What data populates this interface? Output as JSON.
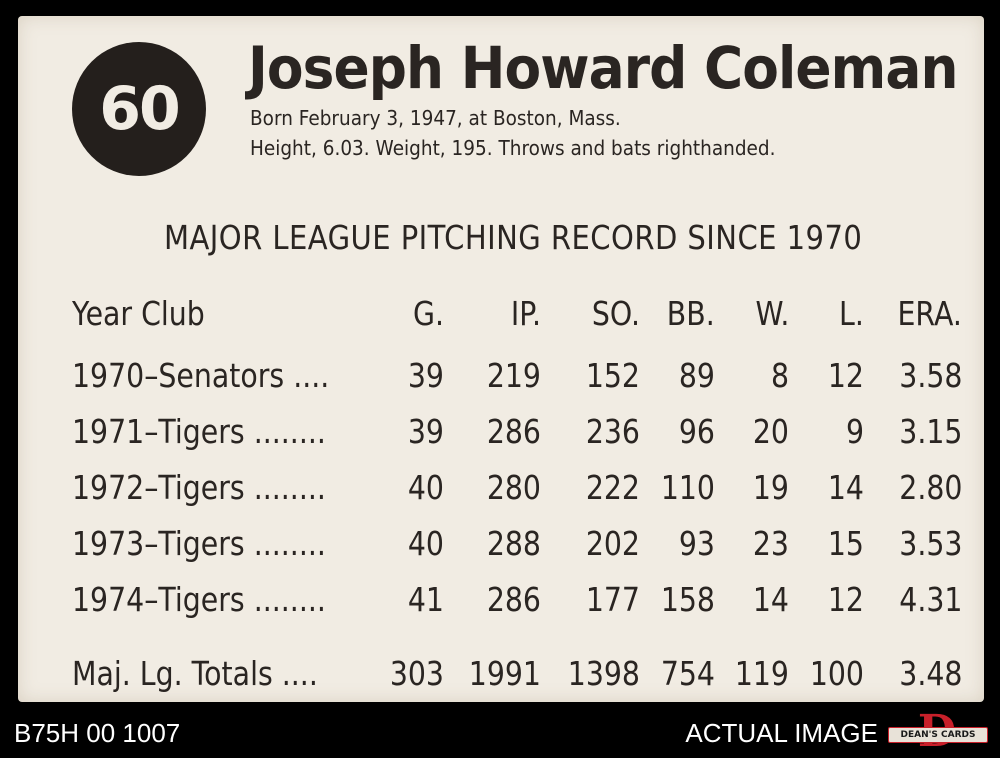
{
  "card": {
    "number": "60",
    "name": "Joseph Howard Coleman",
    "born": "Born February 3, 1947, at Boston, Mass.",
    "size": "Height, 6.03. Weight, 195. Throws and bats righthanded.",
    "record_title": "MAJOR LEAGUE PITCHING RECORD SINCE 1970",
    "columns": [
      "Year  Club",
      "G.",
      "IP.",
      "SO.",
      "BB.",
      "W.",
      "L.",
      "ERA."
    ],
    "rows": [
      [
        "1970–Senators ....",
        "39",
        "219",
        "152",
        "89",
        "8",
        "12",
        "3.58"
      ],
      [
        "1971–Tigers ........",
        "39",
        "286",
        "236",
        "96",
        "20",
        "9",
        "3.15"
      ],
      [
        "1972–Tigers ........",
        "40",
        "280",
        "222",
        "110",
        "19",
        "14",
        "2.80"
      ],
      [
        "1973–Tigers ........",
        "40",
        "288",
        "202",
        "93",
        "23",
        "15",
        "3.53"
      ],
      [
        "1974–Tigers ........",
        "41",
        "286",
        "177",
        "158",
        "14",
        "12",
        "4.31"
      ]
    ],
    "totals": [
      "Maj. Lg. Totals ....",
      "303",
      "1991",
      "1398",
      "754",
      "119",
      "100",
      "3.48"
    ]
  },
  "footer": {
    "id": "B75H 00 1007",
    "label": "ACTUAL IMAGE",
    "logo_letter": "D",
    "logo_text": "DEAN'S CARDS"
  },
  "colors": {
    "ink": "#2a2522",
    "card": "#f1ece3",
    "logo_red": "#c8202a"
  }
}
